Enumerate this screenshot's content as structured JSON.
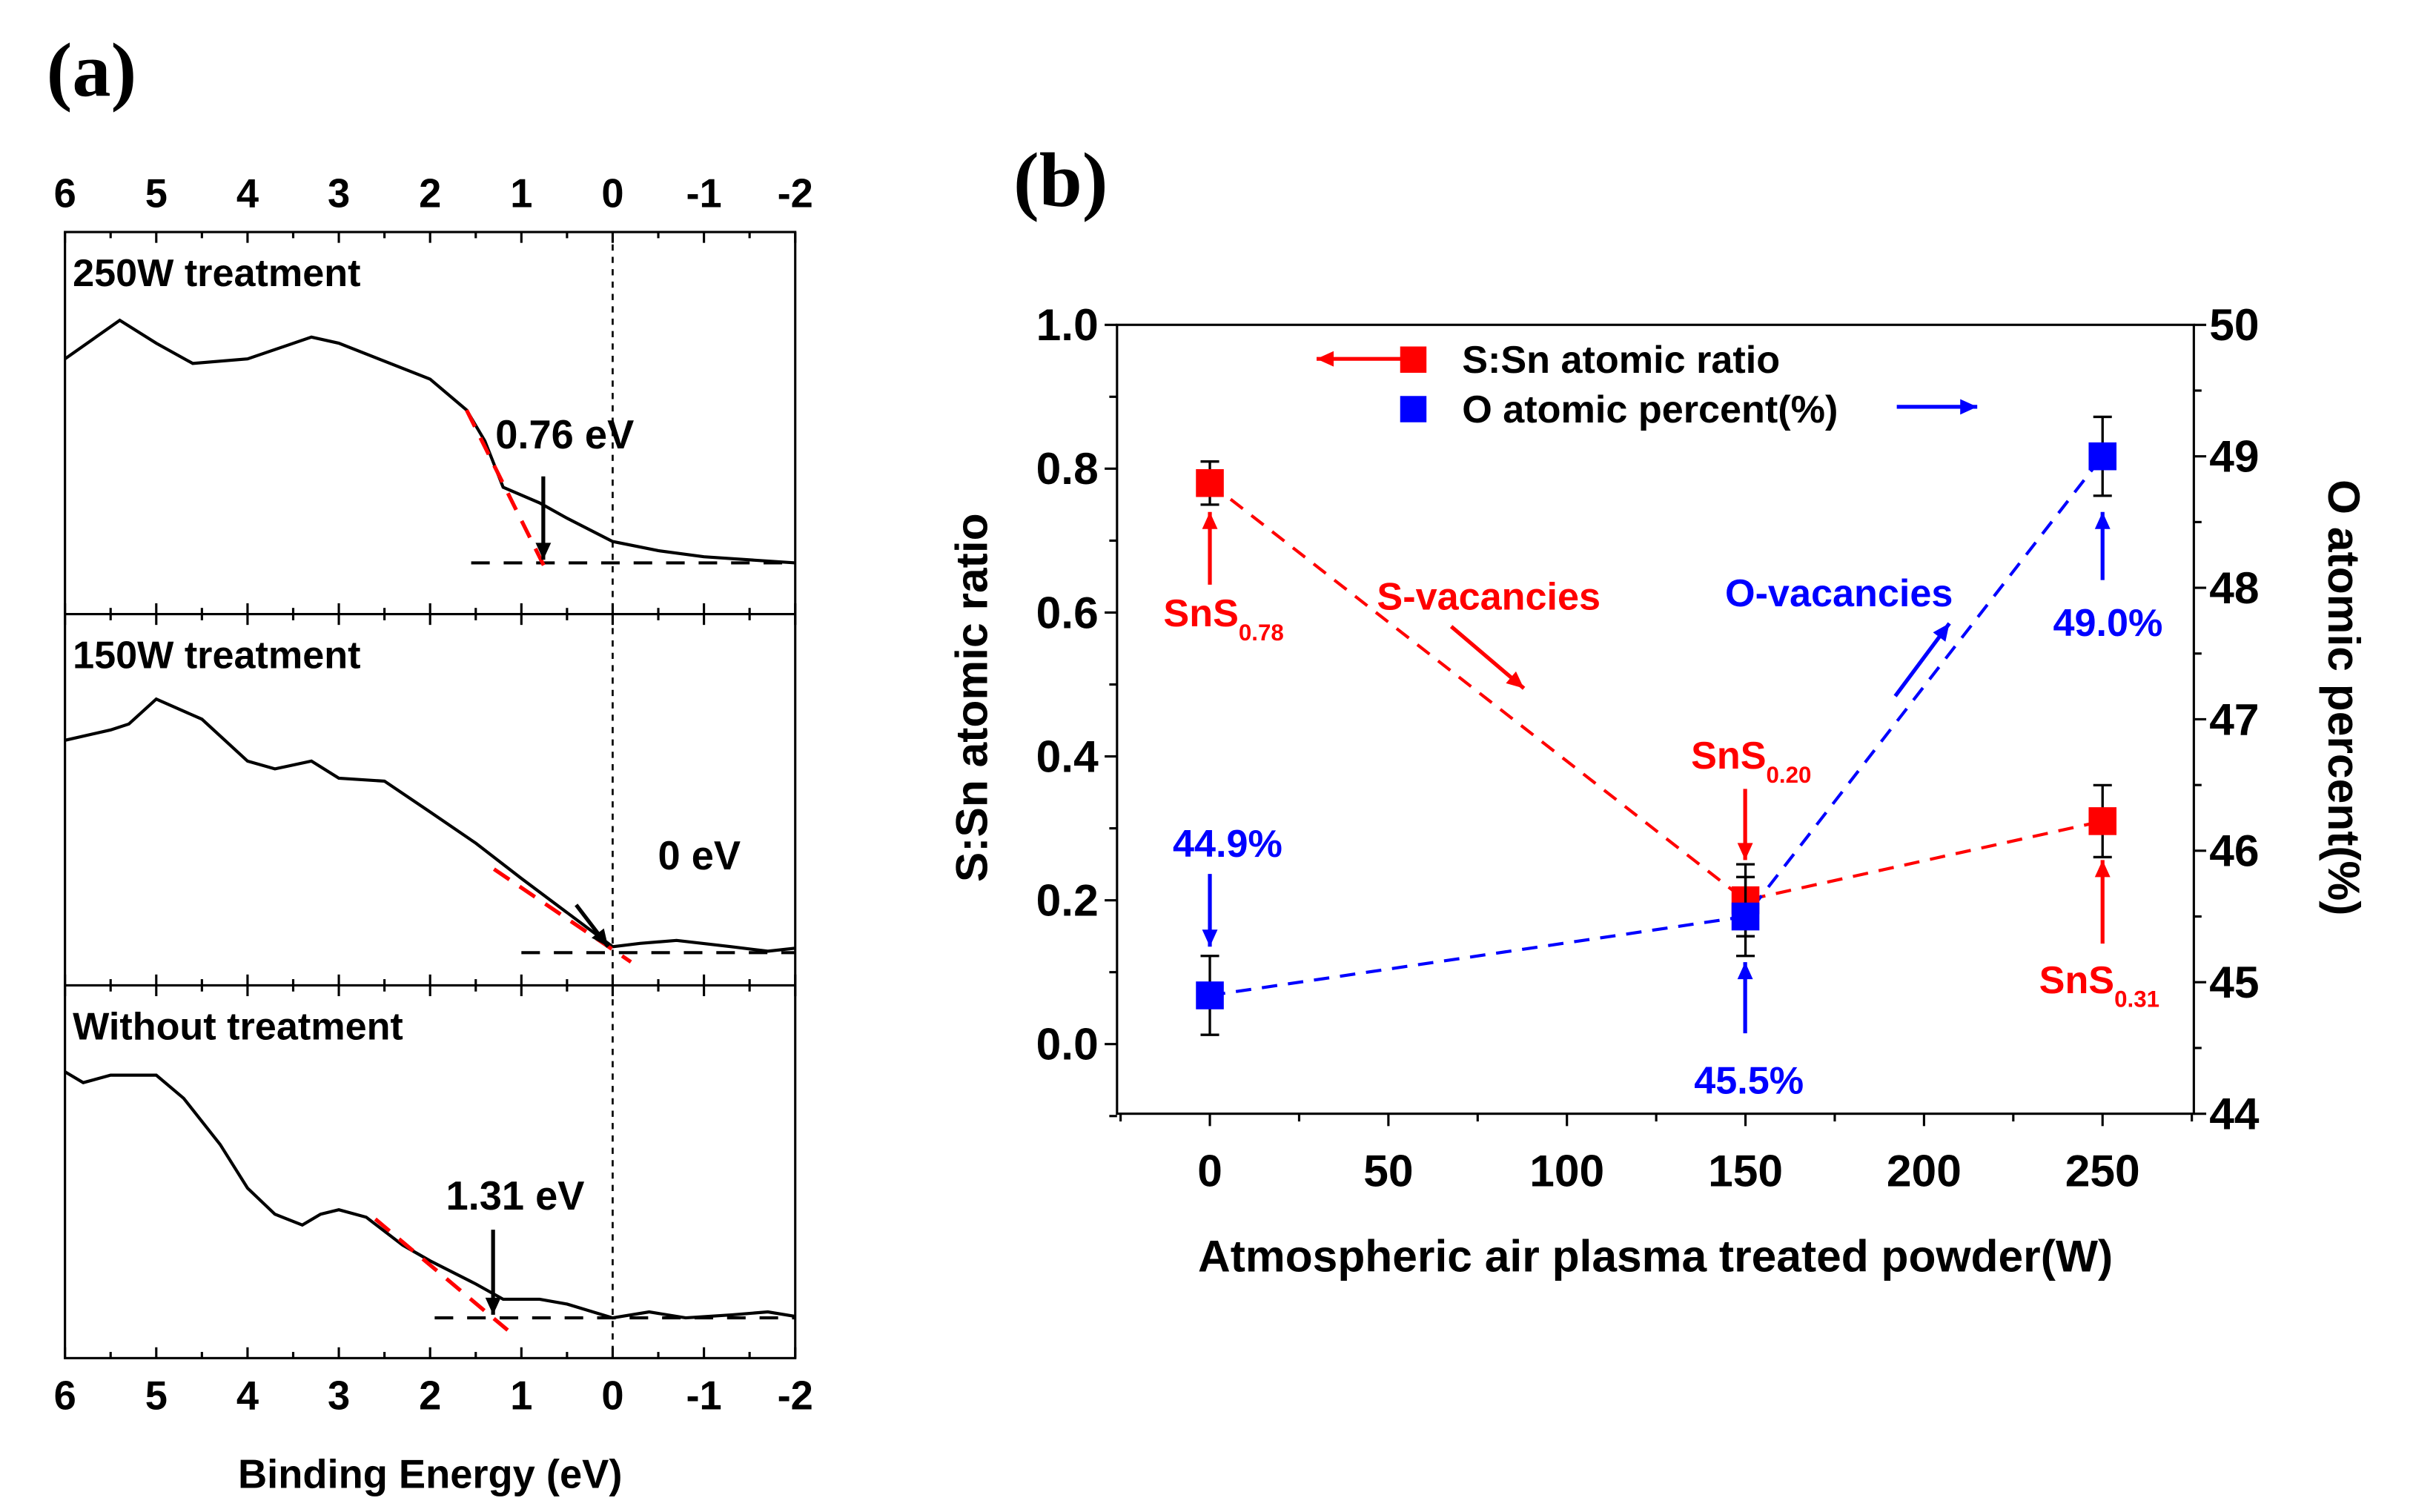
{
  "panel_labels": {
    "a": "(a)",
    "b": "(b)"
  },
  "chart_data": [
    {
      "type": "line",
      "title": "",
      "xlabel": "Binding Energy (eV)",
      "xlim": [
        6,
        -2
      ],
      "xticks": [
        "6",
        "5",
        "4",
        "3",
        "2",
        "1",
        "0",
        "-1",
        "-2"
      ],
      "reference_line_at": 0,
      "panels": [
        {
          "title": "250W treatment",
          "annotation": "0.76 eV",
          "onset": 0.76,
          "series": [
            [
              6,
              0.668
            ],
            [
              5.4,
              0.769
            ],
            [
              5,
              0.709
            ],
            [
              4.6,
              0.656
            ],
            [
              4,
              0.668
            ],
            [
              3.3,
              0.725
            ],
            [
              3,
              0.709
            ],
            [
              2,
              0.615
            ],
            [
              1.6,
              0.534
            ],
            [
              1.4,
              0.453
            ],
            [
              1.2,
              0.332
            ],
            [
              0.8,
              0.291
            ],
            [
              0.5,
              0.251
            ],
            [
              0,
              0.19
            ],
            [
              -0.5,
              0.166
            ],
            [
              -1,
              0.15
            ],
            [
              -1.5,
              0.142
            ],
            [
              -2,
              0.134
            ]
          ],
          "tangent": [
            [
              1.6,
              0.534
            ],
            [
              0.7,
              0.101
            ]
          ],
          "baseline": {
            "from": 1.55,
            "to": -2,
            "level": 0.134
          }
        },
        {
          "title": "150W treatment",
          "annotation": "0 eV",
          "onset": 0,
          "series": [
            [
              6,
              0.66
            ],
            [
              5.5,
              0.688
            ],
            [
              5.3,
              0.704
            ],
            [
              5,
              0.771
            ],
            [
              4.5,
              0.717
            ],
            [
              4,
              0.604
            ],
            [
              3.7,
              0.583
            ],
            [
              3.3,
              0.604
            ],
            [
              3,
              0.558
            ],
            [
              2.5,
              0.55
            ],
            [
              2,
              0.467
            ],
            [
              1.5,
              0.383
            ],
            [
              1,
              0.288
            ],
            [
              0.5,
              0.196
            ],
            [
              0,
              0.104
            ],
            [
              -0.3,
              0.113
            ],
            [
              -0.7,
              0.121
            ],
            [
              -1.3,
              0.104
            ],
            [
              -1.7,
              0.092
            ],
            [
              -2,
              0.1
            ]
          ],
          "tangent": [
            [
              1.3,
              0.313
            ],
            [
              -0.2,
              0.063
            ]
          ],
          "baseline": {
            "from": 1,
            "to": -2,
            "level": 0.088
          }
        },
        {
          "title": "Without treatment",
          "annotation": "1.31 eV",
          "onset": 1.31,
          "series": [
            [
              6,
              0.768
            ],
            [
              5.8,
              0.739
            ],
            [
              5.5,
              0.759
            ],
            [
              5,
              0.759
            ],
            [
              4.7,
              0.697
            ],
            [
              4.3,
              0.573
            ],
            [
              4,
              0.456
            ],
            [
              3.7,
              0.386
            ],
            [
              3.4,
              0.357
            ],
            [
              3.2,
              0.386
            ],
            [
              3,
              0.398
            ],
            [
              2.7,
              0.378
            ],
            [
              2.3,
              0.303
            ],
            [
              2,
              0.261
            ],
            [
              1.5,
              0.199
            ],
            [
              1.2,
              0.158
            ],
            [
              0.8,
              0.158
            ],
            [
              0.5,
              0.145
            ],
            [
              0,
              0.108
            ],
            [
              -0.4,
              0.124
            ],
            [
              -0.8,
              0.108
            ],
            [
              -1.3,
              0.116
            ],
            [
              -1.7,
              0.124
            ],
            [
              -2,
              0.112
            ]
          ],
          "tangent": [
            [
              2.6,
              0.373
            ],
            [
              1.15,
              0.075
            ]
          ],
          "baseline": {
            "from": 1.95,
            "to": -2,
            "level": 0.108
          }
        }
      ]
    },
    {
      "type": "scatter",
      "title": "",
      "xlabel": "Atmospheric air plasma treated powder(W)",
      "ylabel": "S:Sn atomic ratio",
      "y2label": "O atomic percent(%)",
      "xlim": [
        -25,
        275
      ],
      "ylim": [
        -0.1,
        1.0
      ],
      "y2lim": [
        44,
        50
      ],
      "xticks": [
        "0",
        "50",
        "100",
        "150",
        "200",
        "250"
      ],
      "yticks": [
        "0.0",
        "0.2",
        "0.4",
        "0.6",
        "0.8",
        "1.0"
      ],
      "y2ticks": [
        "44",
        "45",
        "46",
        "47",
        "48",
        "49",
        "50"
      ],
      "legend_position": "top-center",
      "series": [
        {
          "name": "S:Sn atomic ratio",
          "axis": "left",
          "color": "#ff0000",
          "x": [
            0,
            150,
            250
          ],
          "y": [
            0.78,
            0.2,
            0.31
          ],
          "err": [
            0.03,
            0.05,
            0.05
          ]
        },
        {
          "name": "O atomic percent(%)",
          "axis": "right",
          "color": "#0000ff",
          "x": [
            0,
            150,
            250
          ],
          "y": [
            44.9,
            45.5,
            49.0
          ],
          "err": [
            0.3,
            0.3,
            0.3
          ]
        }
      ],
      "annotations": [
        {
          "main": "SnS",
          "sub": "0.78",
          "color": "#ff0000"
        },
        {
          "main": "SnS",
          "sub": "0.20",
          "color": "#ff0000"
        },
        {
          "main": "SnS",
          "sub": "0.31",
          "color": "#ff0000"
        },
        {
          "main": "44.9%",
          "color": "#0000ff"
        },
        {
          "main": "45.5%",
          "color": "#0000ff"
        },
        {
          "main": "49.0%",
          "color": "#0000ff"
        },
        {
          "main": "S-vacancies",
          "color": "#ff0000"
        },
        {
          "main": "O-vacancies",
          "color": "#0000ff"
        }
      ]
    }
  ]
}
